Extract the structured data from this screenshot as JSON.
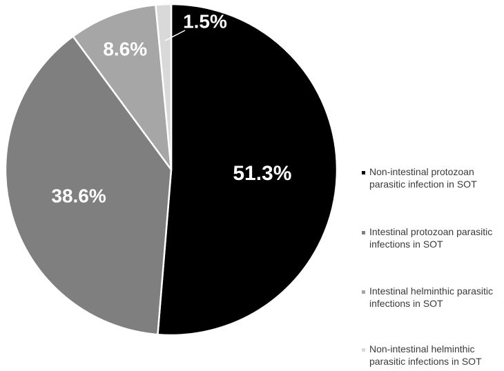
{
  "chart_data": {
    "type": "pie",
    "title": "",
    "slices": [
      {
        "label": "Non-intestinal protozoan parasitic infection in SOT",
        "value": 51.3,
        "display": "51.3%",
        "color": "#000000"
      },
      {
        "label": "Intestinal protozoan parasitic infections in SOT",
        "value": 38.6,
        "display": "38.6%",
        "color": "#7f7f7f"
      },
      {
        "label": "Intestinal helminthic parasitic infections in SOT",
        "value": 8.6,
        "display": "8.6%",
        "color": "#a6a6a6"
      },
      {
        "label": "Non-intestinal helminthic parasitic infections in SOT",
        "value": 1.5,
        "display": "1.5%",
        "color": "#d9d9d9"
      }
    ],
    "legend_position": "right"
  }
}
